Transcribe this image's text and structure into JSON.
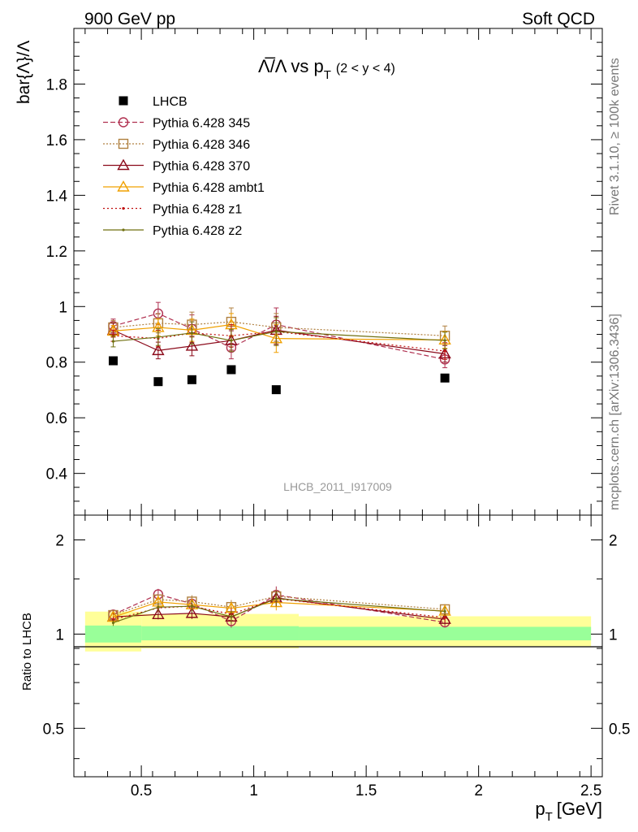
{
  "header": {
    "left": "900 GeV pp",
    "right": "Soft QCD"
  },
  "side": {
    "rivet": "Rivet 3.1.10, ≥ 100k events",
    "mcplots": "mcplots.cern.ch [arXiv:1306.3436]"
  },
  "analysis_id": "LHCB_2011_I917009",
  "chart_data": [
    {
      "type": "scatter",
      "title_main": "Λ̅/Λ vs p",
      "title_sub": "T",
      "title_range": "(2 < y < 4)",
      "ylabel": "bar{Λ}/Λ",
      "xlabel_main": "p",
      "xlabel_sub": "T",
      "xlabel_unit": "[GeV]",
      "xlim": [
        0.2,
        2.55
      ],
      "ylim": [
        0.25,
        2.0
      ],
      "yticks": [
        0.4,
        0.6,
        0.8,
        1,
        1.2,
        1.4,
        1.6,
        1.8
      ],
      "ytick_labels": [
        "0.4",
        "0.6",
        "0.8",
        "1",
        "1.2",
        "1.4",
        "1.6",
        "1.8"
      ],
      "xticks": [
        0.5,
        1,
        1.5,
        2,
        2.5
      ],
      "xtick_labels": [
        "0.5",
        "1",
        "1.5",
        "2",
        "2.5"
      ],
      "legend_position": "top-left",
      "x": [
        0.375,
        0.575,
        0.725,
        0.9,
        1.1,
        1.85
      ],
      "series": [
        {
          "name": "LHCB",
          "color": "#000000",
          "marker": "square-filled",
          "dash": "none",
          "values": [
            0.805,
            0.73,
            0.737,
            0.773,
            0.701,
            0.743
          ]
        },
        {
          "name": "Pythia 6.428 345",
          "color": "#b03050",
          "marker": "circle-open",
          "dash": "6,3",
          "values": [
            0.93,
            0.975,
            0.92,
            0.852,
            0.935,
            0.81
          ],
          "err": [
            0.025,
            0.04,
            0.05,
            0.04,
            0.06,
            0.03
          ]
        },
        {
          "name": "Pythia 6.428 346",
          "color": "#b08040",
          "marker": "square-open",
          "dash": "2,2",
          "values": [
            0.925,
            0.94,
            0.935,
            0.945,
            0.925,
            0.895
          ],
          "err": [
            0.025,
            0.035,
            0.045,
            0.05,
            0.05,
            0.035
          ]
        },
        {
          "name": "Pythia 6.428 370",
          "color": "#8b0a1a",
          "marker": "triangle-open",
          "dash": "none",
          "values": [
            0.915,
            0.842,
            0.858,
            0.878,
            0.915,
            0.83
          ],
          "err": [
            0.025,
            0.03,
            0.035,
            0.035,
            0.05,
            0.03
          ]
        },
        {
          "name": "Pythia 6.428 ambt1",
          "color": "#f0a000",
          "marker": "triangle-open",
          "dash": "none",
          "values": [
            0.912,
            0.925,
            0.915,
            0.935,
            0.885,
            0.88
          ],
          "err": [
            0.02,
            0.03,
            0.04,
            0.04,
            0.05,
            0.03
          ]
        },
        {
          "name": "Pythia 6.428 z1",
          "color": "#c01010",
          "marker": "dot",
          "dash": "2,3",
          "values": [
            0.895,
            0.885,
            0.905,
            0.895,
            0.91,
            0.84
          ],
          "err": [
            0.02,
            0.03,
            0.04,
            0.04,
            0.05,
            0.03
          ]
        },
        {
          "name": "Pythia 6.428 z2",
          "color": "#707010",
          "marker": "dot",
          "dash": "none",
          "values": [
            0.875,
            0.89,
            0.905,
            0.878,
            0.91,
            0.878
          ],
          "err": [
            0.02,
            0.03,
            0.04,
            0.04,
            0.05,
            0.03
          ]
        }
      ]
    },
    {
      "type": "scatter",
      "ylabel": "Ratio to LHCB",
      "ylim": [
        0.35,
        2.4
      ],
      "log_y": true,
      "yticks": [
        0.5,
        1,
        2
      ],
      "ytick_labels": [
        "0.5",
        "1",
        "2"
      ],
      "bands": [
        {
          "x0": 0.25,
          "x1": 0.5,
          "green": [
            0.94,
            1.065
          ],
          "yellow": [
            0.88,
            1.18
          ]
        },
        {
          "x0": 0.5,
          "x1": 1.2,
          "green": [
            0.955,
            1.06
          ],
          "yellow": [
            0.9,
            1.16
          ]
        },
        {
          "x0": 1.2,
          "x1": 2.5,
          "green": [
            0.955,
            1.055
          ],
          "yellow": [
            0.915,
            1.14
          ]
        }
      ],
      "x": [
        0.375,
        0.575,
        0.725,
        0.9,
        1.1,
        1.85
      ],
      "series": [
        {
          "name": "Pythia 6.428 345",
          "values": [
            1.155,
            1.34,
            1.25,
            1.1,
            1.335,
            1.09
          ]
        },
        {
          "name": "Pythia 6.428 346",
          "values": [
            1.15,
            1.29,
            1.27,
            1.22,
            1.32,
            1.2
          ]
        },
        {
          "name": "Pythia 6.428 370",
          "values": [
            1.135,
            1.155,
            1.165,
            1.135,
            1.305,
            1.115
          ]
        },
        {
          "name": "Pythia 6.428 ambt1",
          "values": [
            1.133,
            1.267,
            1.242,
            1.21,
            1.262,
            1.185
          ]
        },
        {
          "name": "Pythia 6.428 z1",
          "values": [
            1.112,
            1.212,
            1.228,
            1.158,
            1.298,
            1.13
          ]
        },
        {
          "name": "Pythia 6.428 z2",
          "values": [
            1.087,
            1.219,
            1.228,
            1.136,
            1.298,
            1.182
          ]
        }
      ]
    }
  ]
}
